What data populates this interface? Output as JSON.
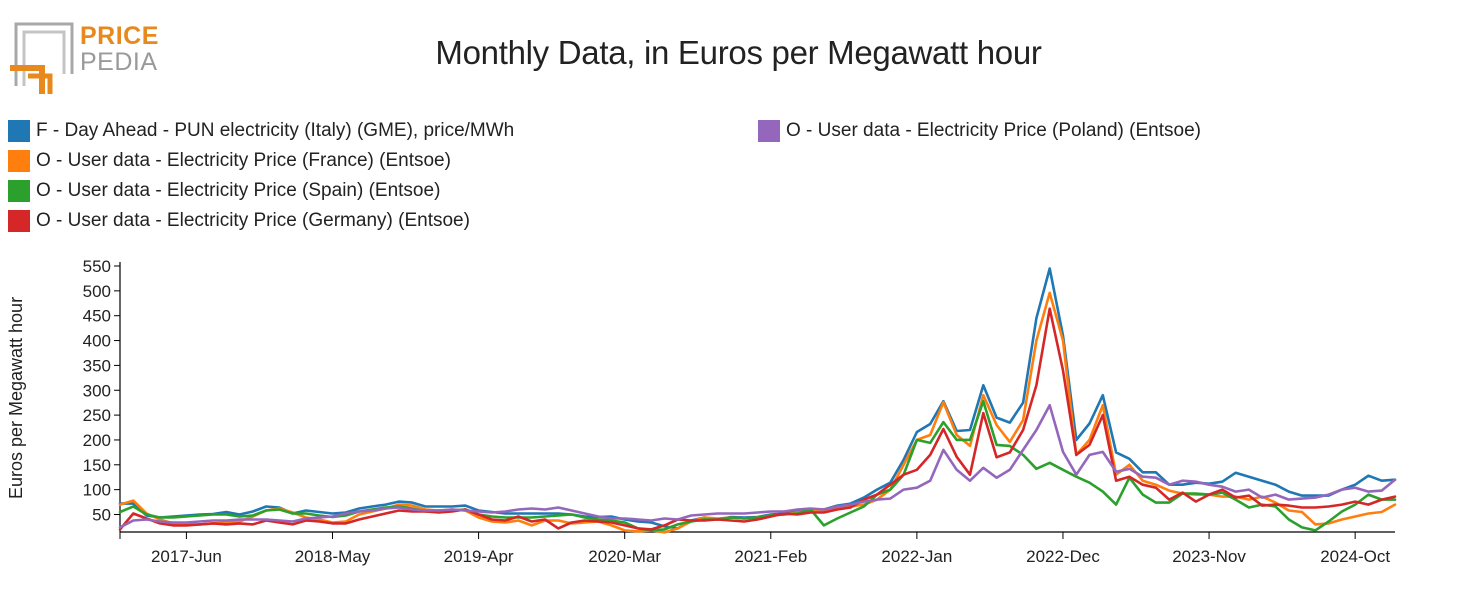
{
  "logo": {
    "line1": "PRICE",
    "line2": "PEDIA",
    "accent_color": "#e8891d",
    "gray_color": "#9a9a9a"
  },
  "chart_data": {
    "type": "line",
    "title": "Monthly Data, in Euros per Megawatt hour",
    "xlabel": "",
    "ylabel": "Euros per Megawatt hour",
    "ylim": [
      20,
      550
    ],
    "yticks": [
      50,
      100,
      150,
      200,
      250,
      300,
      350,
      400,
      450,
      500,
      550
    ],
    "xticks": [
      {
        "label": "2017-Jun",
        "month_index": 5
      },
      {
        "label": "2018-May",
        "month_index": 16
      },
      {
        "label": "2019-Apr",
        "month_index": 27
      },
      {
        "label": "2020-Mar",
        "month_index": 38
      },
      {
        "label": "2021-Feb",
        "month_index": 49
      },
      {
        "label": "2022-Jan",
        "month_index": 60
      },
      {
        "label": "2022-Dec",
        "month_index": 71
      },
      {
        "label": "2023-Nov",
        "month_index": 82
      },
      {
        "label": "2024-Oct",
        "month_index": 93
      }
    ],
    "start_month": "2017-Jan",
    "end_month": "2024-Oct",
    "series": [
      {
        "name": "F - Day Ahead - PUN electricity (Italy) (GME), price/MWh",
        "color": "#1f77b4",
        "values": [
          72,
          72,
          48,
          44,
          46,
          48,
          50,
          51,
          55,
          50,
          56,
          66,
          64,
          52,
          58,
          55,
          52,
          54,
          62,
          66,
          70,
          76,
          74,
          66,
          66,
          66,
          68,
          58,
          55,
          52,
          52,
          52,
          52,
          52,
          50,
          46,
          45,
          46,
          40,
          36,
          34,
          26,
          22,
          38,
          44,
          40,
          45,
          44,
          45,
          50,
          52,
          56,
          60,
          60,
          68,
          72,
          84,
          100,
          114,
          160,
          216,
          232,
          278,
          218,
          220,
          310,
          245,
          235,
          275,
          445,
          545,
          410,
          200,
          233,
          290,
          175,
          162,
          135,
          135,
          110,
          110,
          114,
          112,
          116,
          134,
          126,
          118,
          110,
          96,
          88,
          88,
          88,
          100,
          110,
          128,
          118,
          120
        ]
      },
      {
        "name": "O - User data - Electricity Price (France) (Entsoe)",
        "color": "#ff7f0e",
        "values": [
          70,
          78,
          52,
          40,
          32,
          30,
          30,
          32,
          34,
          36,
          46,
          58,
          62,
          54,
          44,
          40,
          34,
          36,
          50,
          56,
          62,
          70,
          68,
          60,
          58,
          60,
          58,
          44,
          36,
          34,
          38,
          28,
          38,
          38,
          32,
          34,
          36,
          28,
          18,
          16,
          18,
          14,
          22,
          36,
          44,
          42,
          44,
          42,
          44,
          48,
          50,
          54,
          58,
          58,
          62,
          66,
          70,
          80,
          100,
          150,
          200,
          210,
          276,
          210,
          188,
          290,
          230,
          196,
          240,
          400,
          496,
          400,
          170,
          200,
          270,
          130,
          150,
          118,
          110,
          98,
          92,
          90,
          90,
          86,
          86,
          80,
          86,
          74,
          58,
          55,
          30,
          32,
          40,
          46,
          52,
          55,
          70
        ]
      },
      {
        "name": "O - User data - Electricity Price (Spain) (Entsoe)",
        "color": "#2ca02c",
        "values": [
          55,
          66,
          50,
          44,
          44,
          46,
          48,
          50,
          50,
          46,
          48,
          58,
          60,
          52,
          52,
          48,
          45,
          48,
          56,
          60,
          64,
          66,
          62,
          56,
          58,
          58,
          60,
          50,
          46,
          44,
          44,
          44,
          46,
          48,
          50,
          44,
          40,
          38,
          34,
          22,
          18,
          20,
          30,
          36,
          40,
          40,
          44,
          42,
          44,
          48,
          50,
          52,
          60,
          28,
          42,
          54,
          66,
          90,
          100,
          130,
          200,
          194,
          236,
          200,
          200,
          278,
          190,
          188,
          170,
          142,
          154,
          140,
          126,
          114,
          96,
          70,
          124,
          90,
          74,
          74,
          92,
          92,
          90,
          94,
          80,
          64,
          70,
          66,
          40,
          24,
          18,
          36,
          56,
          70,
          90,
          80,
          80
        ]
      },
      {
        "name": "O - User data - Electricity Price (Germany) (Entsoe)",
        "color": "#d62728",
        "values": [
          20,
          52,
          42,
          32,
          28,
          28,
          30,
          32,
          30,
          32,
          30,
          38,
          34,
          30,
          38,
          36,
          32,
          32,
          40,
          46,
          52,
          58,
          56,
          56,
          54,
          56,
          60,
          50,
          40,
          38,
          46,
          36,
          40,
          22,
          34,
          38,
          36,
          34,
          28,
          22,
          20,
          28,
          40,
          38,
          38,
          40,
          38,
          36,
          40,
          46,
          52,
          50,
          54,
          54,
          60,
          64,
          80,
          90,
          110,
          130,
          140,
          170,
          222,
          166,
          130,
          254,
          165,
          175,
          220,
          310,
          464,
          340,
          170,
          190,
          250,
          118,
          126,
          110,
          104,
          80,
          94,
          76,
          90,
          100,
          84,
          88,
          68,
          70,
          68,
          64,
          64,
          66,
          70,
          76,
          70,
          80,
          86
        ]
      },
      {
        "name": "O - User data - Electricity Price (Poland) (Entsoe)",
        "color": "#9467bd",
        "values": [
          24,
          38,
          40,
          36,
          34,
          34,
          36,
          38,
          38,
          40,
          40,
          40,
          38,
          36,
          42,
          44,
          46,
          52,
          56,
          58,
          62,
          64,
          60,
          58,
          58,
          60,
          58,
          56,
          54,
          56,
          60,
          62,
          60,
          64,
          58,
          52,
          46,
          42,
          42,
          40,
          38,
          42,
          40,
          48,
          50,
          52,
          52,
          52,
          54,
          56,
          56,
          60,
          62,
          60,
          66,
          70,
          76,
          80,
          82,
          100,
          104,
          118,
          180,
          140,
          118,
          144,
          124,
          140,
          180,
          220,
          270,
          176,
          130,
          170,
          176,
          136,
          142,
          126,
          124,
          110,
          118,
          116,
          110,
          106,
          96,
          100,
          84,
          90,
          80,
          82,
          84,
          90,
          100,
          104,
          96,
          98,
          120
        ]
      }
    ]
  }
}
